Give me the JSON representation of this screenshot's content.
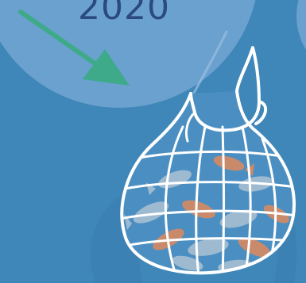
{
  "infographic": {
    "year": "2020",
    "icon": "fishing-net-with-fish-icon",
    "arrow_icon": "down-right-arrow-icon",
    "colors": {
      "background": "#3f87b8",
      "bubble": "#6aa1cf",
      "year_text": "#2b4a7f",
      "arrow": "#3eaa8a",
      "net_stroke": "#ffffff",
      "fish_orange": "#c98a6b",
      "fish_pale": "#9dbad0"
    }
  }
}
